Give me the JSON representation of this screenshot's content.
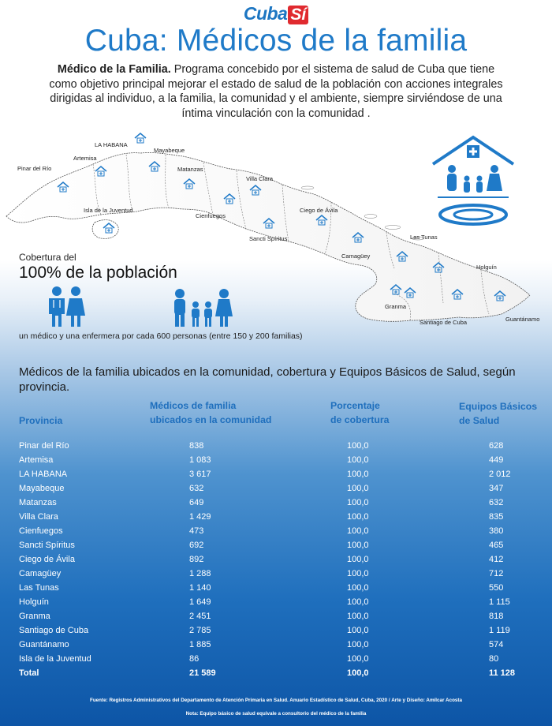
{
  "header": {
    "logo_main": "Cuba",
    "logo_accent": "Sí",
    "title": "Cuba: Médicos de la familia"
  },
  "intro": {
    "bold": "Médico de la Familia.",
    "text": " Programa concebido por el sistema de salud de Cuba que tiene como objetivo principal mejorar el estado de salud de la población con acciones integrales dirigidas al individuo, a la familia, la comunidad y el ambiente, siempre sirviéndose de una íntima vinculación con la comunidad ."
  },
  "map": {
    "labels": [
      "LA HABANA",
      "Mayabeque",
      "Pinar del Río",
      "Artemisa",
      "Matanzas",
      "Villa Clara",
      "Cienfuegos",
      "Isla de la Juventud",
      "Ciego de Ávila",
      "Sancti Spíritus",
      "Las Tunas",
      "Camagüey",
      "Holguín",
      "Granma",
      "Santiago de Cuba",
      "Guantánamo"
    ]
  },
  "coverage": {
    "label": "Cobertura del",
    "value": "100% de la población",
    "note": "un médico y una enfermera por cada 600 personas (entre 150 y 200 familias)"
  },
  "table": {
    "title": "Médicos de la familia ubicados en la comunidad, cobertura y Equipos Básicos de Salud, según provincia.",
    "headers": {
      "provincia": "Provincia",
      "medicos_l1": "Médicos de familia",
      "medicos_l2": "ubicados en la comunidad",
      "cobertura_l1": "Porcentaje",
      "cobertura_l2": "de cobertura",
      "equipos_l1": "Equipos Básicos",
      "equipos_l2": "de Salud"
    },
    "rows": [
      {
        "provincia": "Pinar del Río",
        "medicos": "838",
        "cobertura": "100,0",
        "equipos": "628"
      },
      {
        "provincia": "Artemisa",
        "medicos": "1 083",
        "cobertura": "100,0",
        "equipos": "449"
      },
      {
        "provincia": "LA HABANA",
        "medicos": "3 617",
        "cobertura": "100,0",
        "equipos": "2 012"
      },
      {
        "provincia": "Mayabeque",
        "medicos": "632",
        "cobertura": "100,0",
        "equipos": "347"
      },
      {
        "provincia": "Matanzas",
        "medicos": "649",
        "cobertura": "100,0",
        "equipos": "632"
      },
      {
        "provincia": "Villa Clara",
        "medicos": "1 429",
        "cobertura": "100,0",
        "equipos": "835"
      },
      {
        "provincia": "Cienfuegos",
        "medicos": "473",
        "cobertura": "100,0",
        "equipos": "380"
      },
      {
        "provincia": "Sancti Spíritus",
        "medicos": "692",
        "cobertura": "100,0",
        "equipos": "465"
      },
      {
        "provincia": "Ciego de Ávila",
        "medicos": "892",
        "cobertura": "100,0",
        "equipos": "412"
      },
      {
        "provincia": "Camagüey",
        "medicos": "1 288",
        "cobertura": "100,0",
        "equipos": "712"
      },
      {
        "provincia": "Las Tunas",
        "medicos": "1 140",
        "cobertura": "100,0",
        "equipos": "550"
      },
      {
        "provincia": "Holguín",
        "medicos": "1 649",
        "cobertura": "100,0",
        "equipos": "1 115"
      },
      {
        "provincia": "Granma",
        "medicos": "2 451",
        "cobertura": "100,0",
        "equipos": "818"
      },
      {
        "provincia": "Santiago de Cuba",
        "medicos": "2 785",
        "cobertura": "100,0",
        "equipos": "1 119"
      },
      {
        "provincia": "Guantánamo",
        "medicos": "1 885",
        "cobertura": "100,0",
        "equipos": "574"
      },
      {
        "provincia": "Isla de la Juventud",
        "medicos": "86",
        "cobertura": "100,0",
        "equipos": "80"
      }
    ],
    "total": {
      "provincia": "Total",
      "medicos": "21 589",
      "cobertura": "100,0",
      "equipos": "11 128"
    }
  },
  "footer": {
    "source": "Fuente: Registros Administrativos del Departamento de Atención Primaria en Salud. Anuario Estadístico de Salud, Cuba, 2020 / Arte y Diseño: Amílcar Acosta",
    "note": "Nota: Equipo básico de salud equivale a consultorio del médico de la familia"
  },
  "colors": {
    "accent": "#1f7ac8",
    "logo_red": "#e02a2f",
    "table_bg": "#0d55a6"
  },
  "icons": [
    "house-cross-icon",
    "family-icon",
    "doctor-nurse-icon",
    "clinic-pin-icon"
  ]
}
